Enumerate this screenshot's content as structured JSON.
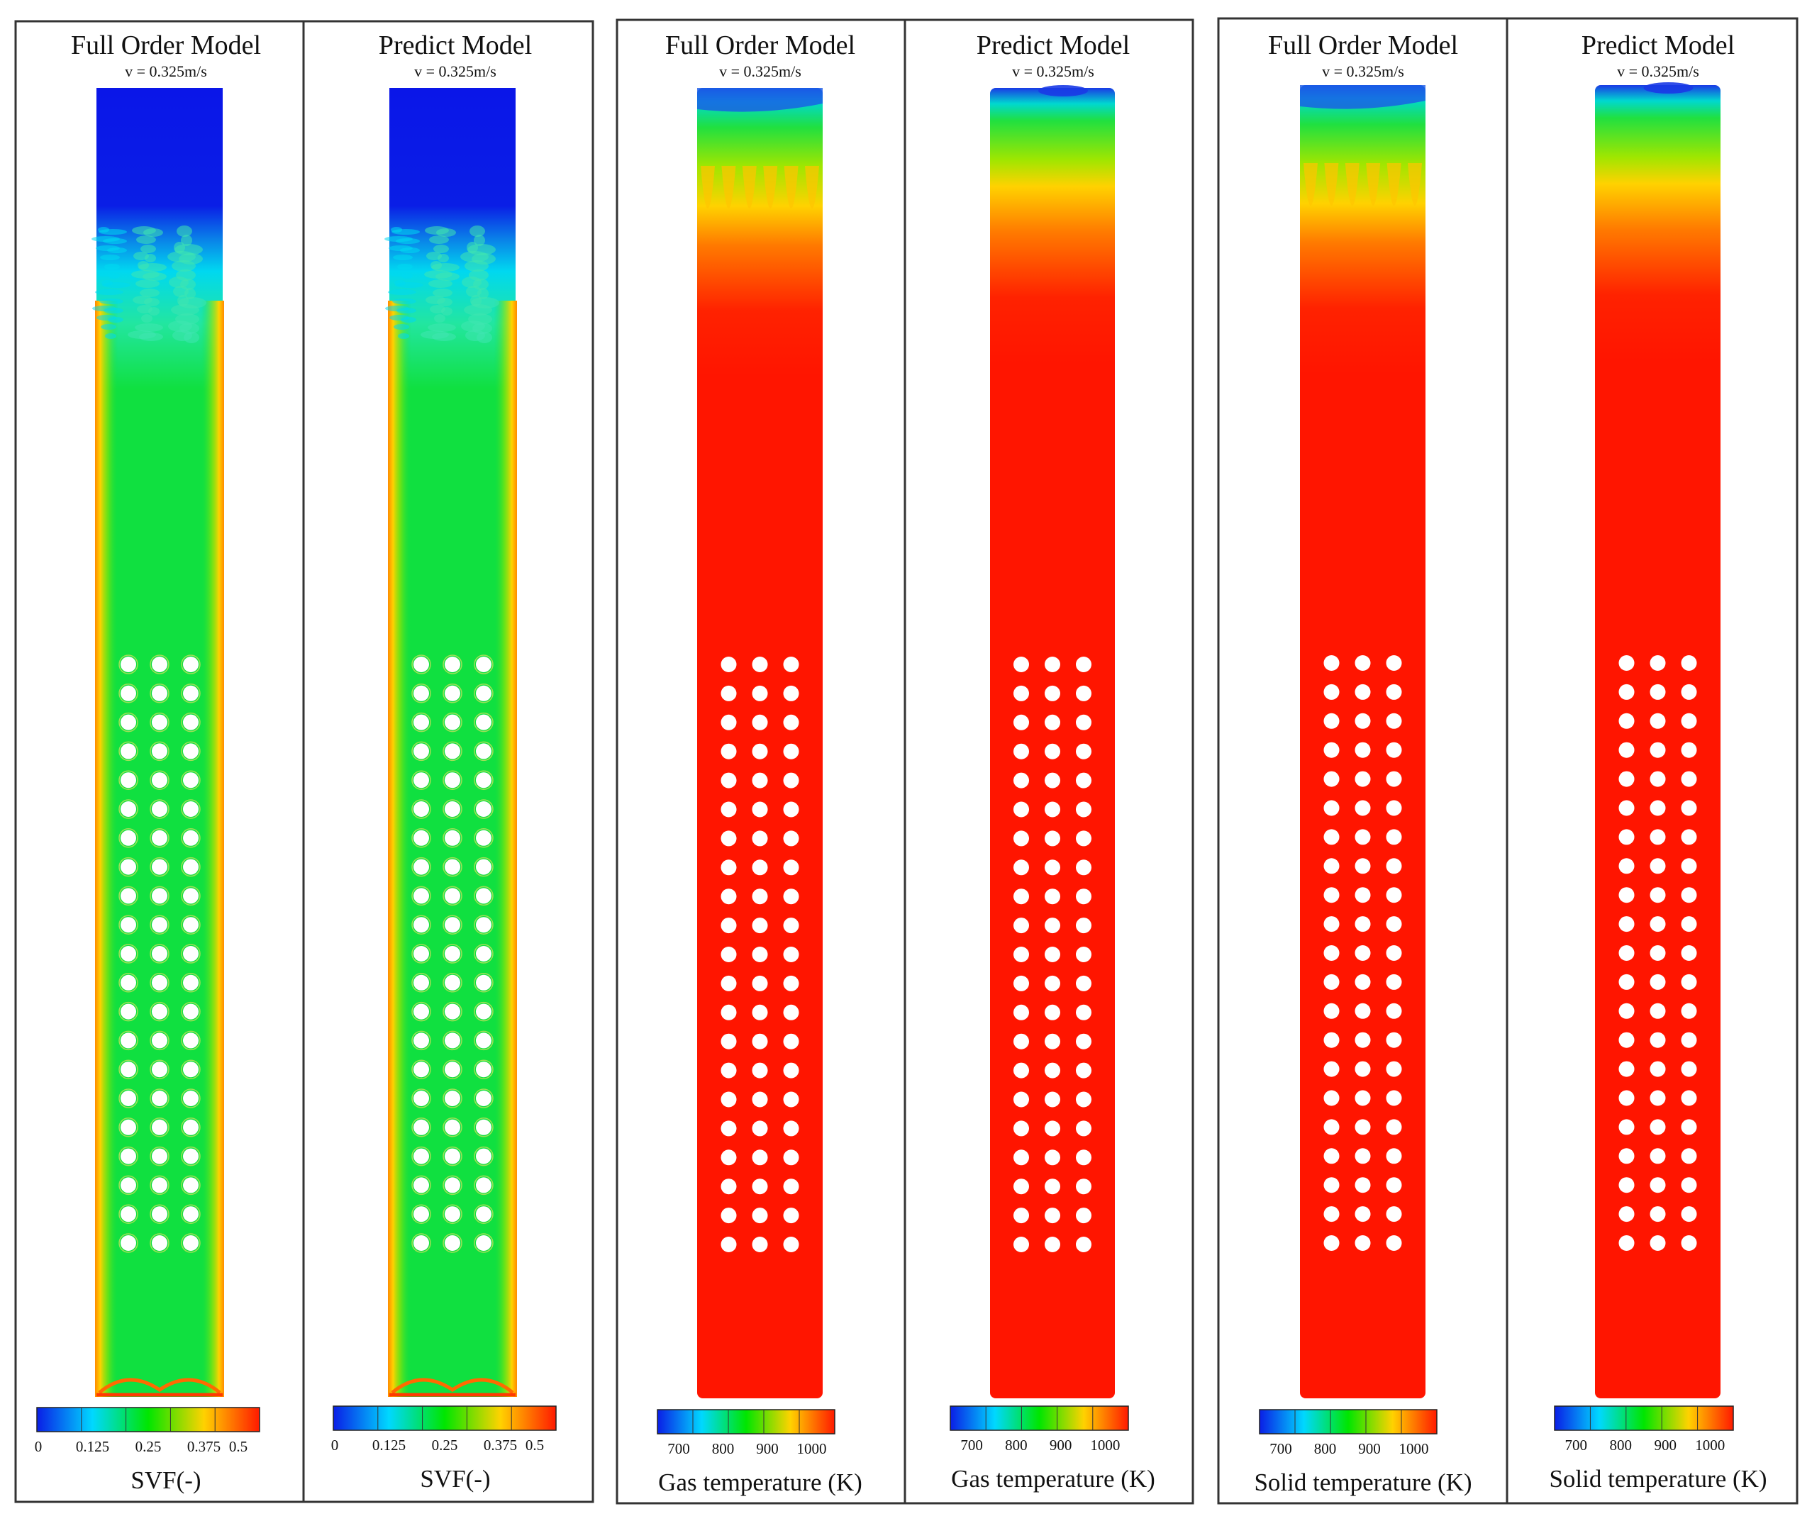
{
  "figure": {
    "groups": [
      {
        "name": "svf",
        "panels": [
          {
            "title": "Full Order Model",
            "velocity": "v = 0.325m/s",
            "variant": "fom"
          },
          {
            "title": "Predict Model",
            "velocity": "v = 0.325m/s",
            "variant": "pred"
          }
        ],
        "colorbar": {
          "ticks": [
            "0",
            "0.125",
            "0.25",
            "0.375",
            "0.5"
          ],
          "label": "SVF(-)",
          "colors": [
            "#0a1ee6",
            "#00d8ff",
            "#00e600",
            "#ffd200",
            "#ff1a00"
          ]
        }
      },
      {
        "name": "gas-temperature",
        "panels": [
          {
            "title": "Full Order Model",
            "velocity": "v = 0.325m/s",
            "variant": "fom"
          },
          {
            "title": "Predict Model",
            "velocity": "v = 0.325m/s",
            "variant": "pred"
          }
        ],
        "colorbar": {
          "ticks": [
            "700",
            "800",
            "900",
            "1000"
          ],
          "label": "Gas  temperature (K)",
          "colors": [
            "#0a1ee6",
            "#00d8ff",
            "#00e600",
            "#ffd200",
            "#ff1a00"
          ]
        }
      },
      {
        "name": "solid-temperature",
        "panels": [
          {
            "title": "Full Order Model",
            "velocity": "v = 0.325m/s",
            "variant": "fom"
          },
          {
            "title": "Predict Model",
            "velocity": "v = 0.325m/s",
            "variant": "pred"
          }
        ],
        "colorbar": {
          "ticks": [
            "700",
            "800",
            "900",
            "1000"
          ],
          "label": "Solid  temperature (K)",
          "colors": [
            "#0a1ee6",
            "#00d8ff",
            "#00e600",
            "#ffd200",
            "#ff1a00"
          ]
        }
      }
    ],
    "tube_bank": {
      "rows": 21,
      "columns": 3
    }
  }
}
